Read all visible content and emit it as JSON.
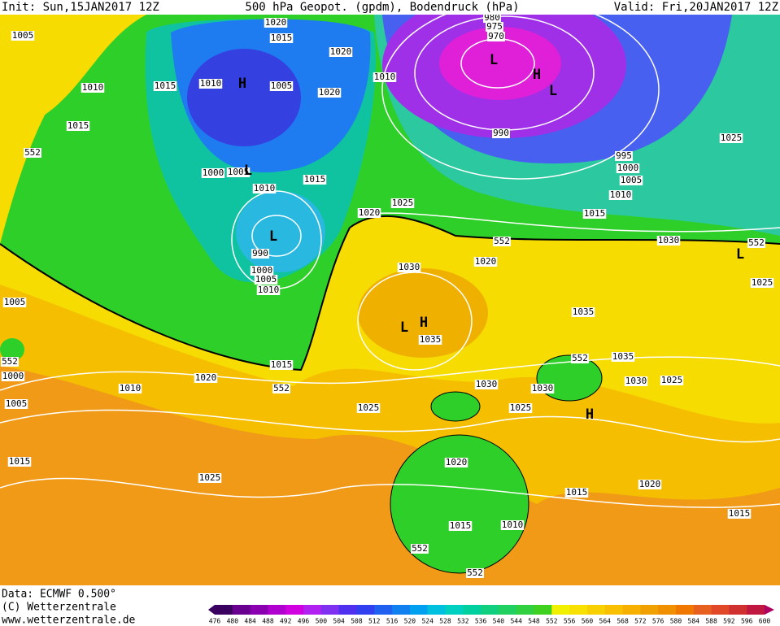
{
  "header": {
    "init": "Init: Sun,15JAN2017 12Z",
    "title": "500 hPa Geopot. (gpdm), Bodendruck (hPa)",
    "valid": "Valid: Fri,20JAN2017 12Z"
  },
  "isobar_labels": [
    "1005",
    "1020",
    "1015",
    "1020",
    "1010",
    "1015",
    "1010",
    "1005",
    "1020",
    "1010",
    "990",
    "1015",
    "995",
    "1000",
    "1005",
    "1010",
    "1025",
    "1000",
    "1005",
    "1015",
    "1010",
    "1025",
    "1020",
    "1015",
    "1030",
    "1030",
    "1020",
    "990",
    "1000",
    "1005",
    "1010",
    "1025",
    "1005",
    "1035",
    "1035",
    "1015",
    "1035",
    "1000",
    "1010",
    "1020",
    "1030",
    "1030",
    "1030",
    "1025",
    "1005",
    "1025",
    "1025",
    "1015",
    "1020",
    "1025",
    "1020",
    "1015",
    "1015",
    "1010",
    "1015",
    "980",
    "975",
    "970"
  ],
  "geopotential_labels": [
    "552",
    "552",
    "552",
    "552",
    "552",
    "552",
    "552",
    "552"
  ],
  "pressure_centers": [
    "H",
    "H",
    "L",
    "L",
    "L",
    "L",
    "L",
    "H",
    "H",
    "L"
  ],
  "footer": {
    "data": "Data: ECMWF   0.500°",
    "copyright": "(C) Wetterzentrale",
    "url": "www.wetterzentrale.de"
  },
  "colorbar": {
    "labels": [
      "476",
      "480",
      "484",
      "488",
      "492",
      "496",
      "500",
      "504",
      "508",
      "512",
      "516",
      "520",
      "524",
      "528",
      "532",
      "536",
      "540",
      "544",
      "548",
      "552",
      "556",
      "560",
      "564",
      "568",
      "572",
      "576",
      "580",
      "584",
      "588",
      "592",
      "596",
      "600"
    ]
  }
}
